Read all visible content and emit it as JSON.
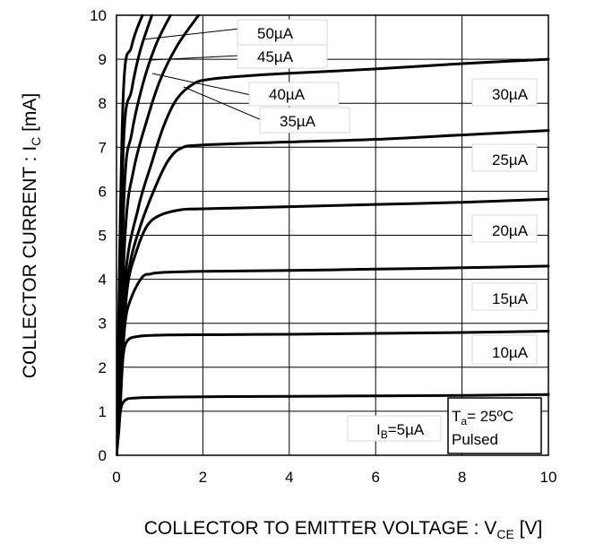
{
  "chart_data": {
    "type": "line",
    "xlabel": {
      "main": "COLLECTOR TO EMITTER VOLTAGE : V",
      "sub": "CE",
      "unit": " [V]"
    },
    "ylabel": {
      "main": "COLLECTOR CURRENT : I",
      "sub": "C",
      "unit": " [mA]"
    },
    "xlim": [
      0,
      10
    ],
    "ylim": [
      0,
      10
    ],
    "xticks": [
      "0",
      "2",
      "4",
      "6",
      "8",
      "10"
    ],
    "yticks": [
      "0",
      "1",
      "2",
      "3",
      "4",
      "5",
      "6",
      "7",
      "8",
      "9",
      "10"
    ],
    "grid": true,
    "note": {
      "line1_main": "T",
      "line1_sub": "a",
      "line1_rest": "= 25ºC",
      "line2": "Pulsed"
    },
    "series": [
      {
        "name": "I_B=5µA",
        "label_text": "5µA",
        "label_prefix": "I",
        "label_prefix_sub": "B",
        "label_eq": "=",
        "points": [
          [
            0,
            0
          ],
          [
            0.05,
            0.5
          ],
          [
            0.1,
            1.05
          ],
          [
            0.2,
            1.25
          ],
          [
            0.4,
            1.3
          ],
          [
            1,
            1.32
          ],
          [
            2,
            1.33
          ],
          [
            4,
            1.34
          ],
          [
            6,
            1.35
          ],
          [
            8,
            1.36
          ],
          [
            10,
            1.38
          ]
        ]
      },
      {
        "name": "10µA",
        "label_text": "10µA",
        "points": [
          [
            0,
            0
          ],
          [
            0.08,
            1.0
          ],
          [
            0.15,
            2.2
          ],
          [
            0.25,
            2.6
          ],
          [
            0.5,
            2.7
          ],
          [
            1,
            2.73
          ],
          [
            2,
            2.74
          ],
          [
            4,
            2.75
          ],
          [
            6,
            2.77
          ],
          [
            8,
            2.79
          ],
          [
            10,
            2.82
          ]
        ]
      },
      {
        "name": "15µA",
        "label_text": "15µA",
        "points": [
          [
            0,
            0
          ],
          [
            0.1,
            1.5
          ],
          [
            0.2,
            3.0
          ],
          [
            0.35,
            3.6
          ],
          [
            0.6,
            4.05
          ],
          [
            0.8,
            4.12
          ],
          [
            1,
            4.15
          ],
          [
            2,
            4.18
          ],
          [
            4,
            4.2
          ],
          [
            6,
            4.23
          ],
          [
            8,
            4.26
          ],
          [
            10,
            4.3
          ]
        ]
      },
      {
        "name": "20µA",
        "label_text": "20µA",
        "points": [
          [
            0,
            0
          ],
          [
            0.12,
            2.0
          ],
          [
            0.25,
            3.8
          ],
          [
            0.45,
            4.6
          ],
          [
            0.7,
            5.2
          ],
          [
            1,
            5.45
          ],
          [
            1.5,
            5.58
          ],
          [
            2,
            5.6
          ],
          [
            4,
            5.65
          ],
          [
            6,
            5.7
          ],
          [
            8,
            5.75
          ],
          [
            10,
            5.82
          ]
        ]
      },
      {
        "name": "25µA",
        "label_text": "25µA",
        "points": [
          [
            0,
            0
          ],
          [
            0.15,
            3.0
          ],
          [
            0.3,
            4.3
          ],
          [
            0.55,
            5.2
          ],
          [
            0.9,
            6.1
          ],
          [
            1.2,
            6.7
          ],
          [
            1.5,
            6.98
          ],
          [
            2,
            7.05
          ],
          [
            4,
            7.12
          ],
          [
            6,
            7.18
          ],
          [
            8,
            7.28
          ],
          [
            10,
            7.38
          ]
        ]
      },
      {
        "name": "30µA",
        "label_text": "30µA",
        "points": [
          [
            0,
            0
          ],
          [
            0.2,
            4.0
          ],
          [
            0.5,
            5.6
          ],
          [
            0.8,
            6.6
          ],
          [
            1.1,
            7.5
          ],
          [
            1.4,
            8.1
          ],
          [
            1.8,
            8.45
          ],
          [
            2.2,
            8.55
          ],
          [
            3,
            8.62
          ],
          [
            4,
            8.68
          ],
          [
            6,
            8.78
          ],
          [
            8,
            8.9
          ],
          [
            10,
            9.0
          ]
        ]
      },
      {
        "name": "35µA",
        "label_text": "35µA",
        "points": [
          [
            0,
            0
          ],
          [
            0.2,
            5.0
          ],
          [
            0.4,
            6.5
          ],
          [
            0.7,
            7.6
          ],
          [
            1.0,
            8.5
          ],
          [
            1.4,
            9.3
          ],
          [
            1.9,
            10.0
          ]
        ]
      },
      {
        "name": "40µA",
        "label_text": "40µA",
        "points": [
          [
            0,
            0
          ],
          [
            0.18,
            6.0
          ],
          [
            0.35,
            7.3
          ],
          [
            0.6,
            8.4
          ],
          [
            0.9,
            9.3
          ],
          [
            1.25,
            10.0
          ]
        ]
      },
      {
        "name": "45µA",
        "label_text": "45µA",
        "points": [
          [
            0,
            0
          ],
          [
            0.16,
            7.0
          ],
          [
            0.35,
            8.3
          ],
          [
            0.55,
            9.2
          ],
          [
            0.82,
            10.0
          ]
        ]
      },
      {
        "name": "50µA",
        "label_text": "50µA",
        "points": [
          [
            0,
            0
          ],
          [
            0.15,
            8.0
          ],
          [
            0.35,
            9.3
          ],
          [
            0.6,
            10.0
          ]
        ]
      }
    ]
  }
}
